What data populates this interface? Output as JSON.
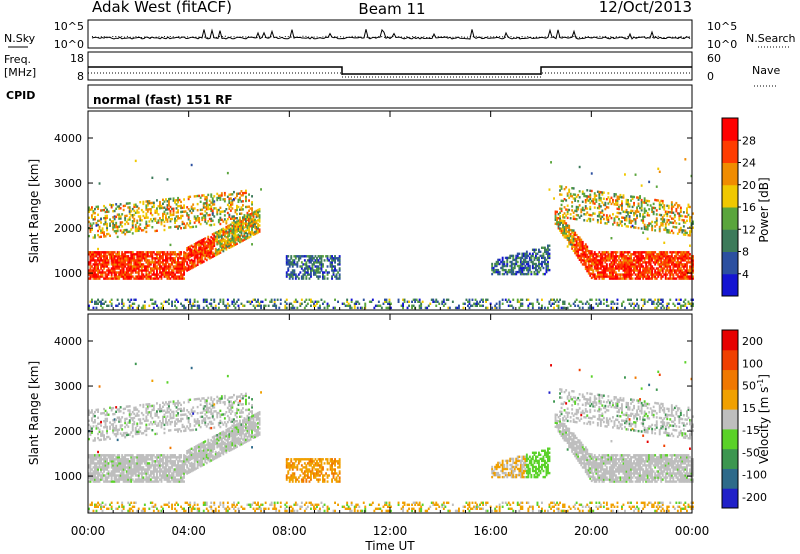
{
  "header": {
    "station": "Adak West (fitACF)",
    "beam": "Beam 11",
    "date": "12/Oct/2013"
  },
  "side_labels": {
    "nsky": "N.Sky",
    "nsearch": "N.Search",
    "freq": "Freq.",
    "freq_unit": "[MHz]",
    "nave": "Nave",
    "cpid": "CPID",
    "mode": "normal (fast) 151 RF"
  },
  "small_ticks": {
    "noise_top": "10^5",
    "noise_bottom": "10^0",
    "freq_top": "18",
    "freq_bottom": "8",
    "nave_top": "60",
    "nave_bottom": "0"
  },
  "chart_data": [
    {
      "type": "heatmap",
      "name": "power",
      "ylabel": "Slant Range [km]",
      "colorbar_label": "Power [dB]",
      "ylim": [
        180,
        4600
      ],
      "yticks": [
        1000,
        2000,
        3000,
        4000
      ],
      "colorbar_ticks": [
        "4",
        "8",
        "12",
        "16",
        "20",
        "24",
        "28"
      ],
      "colors": [
        "#1414d2",
        "#2c50a0",
        "#3c7a5a",
        "#5aa53c",
        "#f0c800",
        "#f08c00",
        "#ff3c00",
        "#ff0000"
      ]
    },
    {
      "type": "heatmap",
      "name": "velocity",
      "ylabel": "Slant Range [km]",
      "colorbar_label": "Velocity [m s",
      "colorbar_label_sup": "-1",
      "colorbar_label_end": "]",
      "ylim": [
        180,
        4600
      ],
      "yticks": [
        1000,
        2000,
        3000,
        4000
      ],
      "colorbar_ticks": [
        "200",
        "100",
        "50",
        "15",
        "-15",
        "-50",
        "-100",
        "-200"
      ],
      "colors": [
        "#2020c8",
        "#2e6a8a",
        "#3c9650",
        "#5ad228",
        "#bebebe",
        "#f0a000",
        "#f07800",
        "#f04000",
        "#e60000"
      ]
    }
  ],
  "xaxis": {
    "label": "Time UT",
    "ticks": [
      "00:00",
      "04:00",
      "08:00",
      "12:00",
      "16:00",
      "20:00",
      "00:00"
    ]
  }
}
